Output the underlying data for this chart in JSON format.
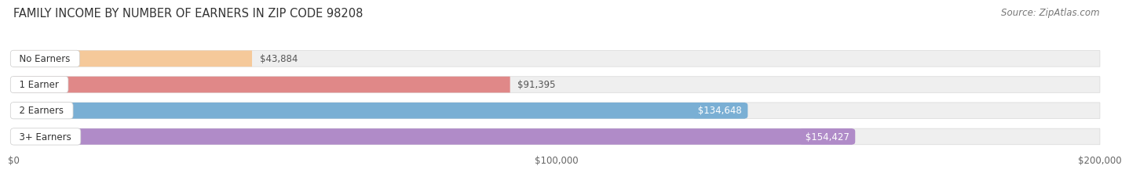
{
  "title": "FAMILY INCOME BY NUMBER OF EARNERS IN ZIP CODE 98208",
  "source": "Source: ZipAtlas.com",
  "categories": [
    "No Earners",
    "1 Earner",
    "2 Earners",
    "3+ Earners"
  ],
  "values": [
    43884,
    91395,
    134648,
    154427
  ],
  "bar_colors": [
    "#f5c99a",
    "#e08888",
    "#7aafd4",
    "#b08bc8"
  ],
  "bar_bg_color": "#efefef",
  "label_texts": [
    "$43,884",
    "$91,395",
    "$134,648",
    "$154,427"
  ],
  "label_inside": [
    false,
    false,
    true,
    true
  ],
  "x_max": 200000,
  "x_ticks": [
    0,
    100000,
    200000
  ],
  "x_tick_labels": [
    "$0",
    "$100,000",
    "$200,000"
  ],
  "title_fontsize": 10.5,
  "source_fontsize": 8.5,
  "label_fontsize": 8.5,
  "category_fontsize": 8.5,
  "background_color": "#ffffff",
  "bar_height": 0.62,
  "bar_gap": 0.18
}
